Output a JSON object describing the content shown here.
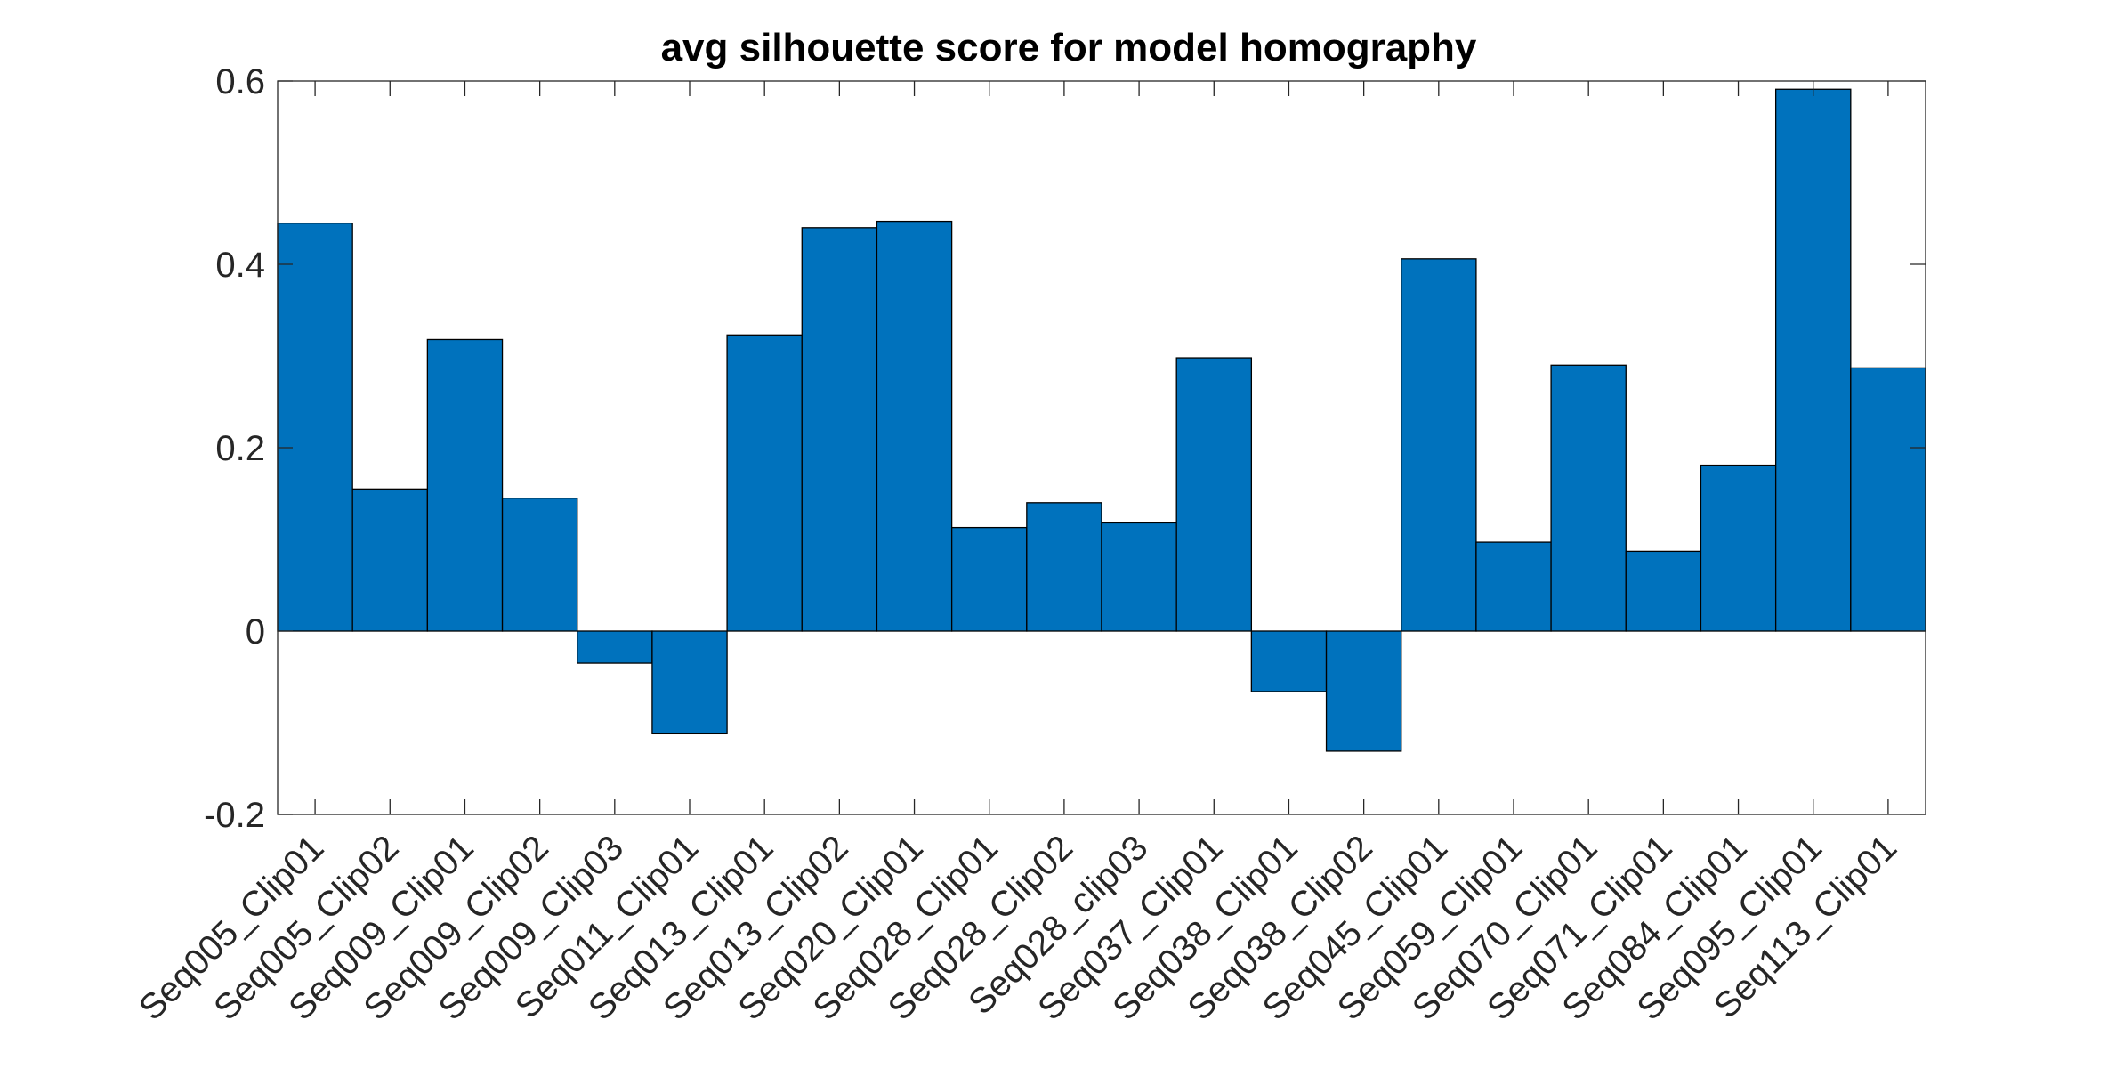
{
  "chart_data": {
    "type": "bar",
    "title": "avg silhouette score for model homography",
    "xlabel": "",
    "ylabel": "",
    "ylim": [
      -0.2,
      0.6
    ],
    "yticks": [
      -0.2,
      0,
      0.2,
      0.4,
      0.6
    ],
    "ytick_labels": [
      "-0.2",
      "0",
      "0.2",
      "0.4",
      "0.6"
    ],
    "grid": false,
    "legend": "none",
    "bar_color": "#0072BD",
    "edge_color": "#000000",
    "categories": [
      "Seq005_Clip01",
      "Seq005_Clip02",
      "Seq009_Clip01",
      "Seq009_Clip02",
      "Seq009_Clip03",
      "Seq011_Clip01",
      "Seq013_Clip01",
      "Seq013_Clip02",
      "Seq020_Clip01",
      "Seq028_Clip01",
      "Seq028_Clip02",
      "Seq028_clip03",
      "Seq037_Clip01",
      "Seq038_Clip01",
      "Seq038_Clip02",
      "Seq045_Clip01",
      "Seq059_Clip01",
      "Seq070_Clip01",
      "Seq071_Clip01",
      "Seq084_Clip01",
      "Seq095_Clip01",
      "Seq113_Clip01"
    ],
    "values": [
      0.445,
      0.155,
      0.318,
      0.145,
      -0.035,
      -0.112,
      0.323,
      0.44,
      0.447,
      0.113,
      0.14,
      0.118,
      0.298,
      -0.066,
      -0.131,
      0.406,
      0.097,
      0.29,
      0.087,
      0.181,
      0.591,
      0.287
    ]
  }
}
